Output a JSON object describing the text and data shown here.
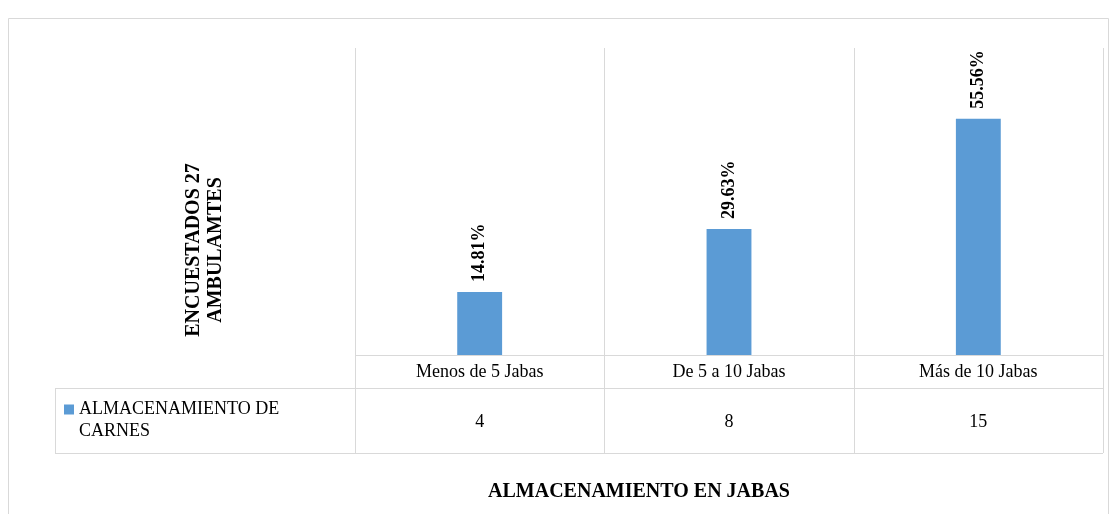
{
  "chart_data": {
    "type": "bar",
    "xlabel": "ALMACENAMIENTO EN JABAS",
    "categories": [
      "Menos de 5 Jabas",
      "De 5 a 10 Jabas",
      "Más de 10 Jabas"
    ],
    "series": [
      {
        "name": "ALMACENAMIENTO DE CARNES",
        "color": "#5b9bd5",
        "values": [
          14.81,
          29.63,
          55.56
        ],
        "value_labels": [
          "14.81%",
          "29.63%",
          "55.56%"
        ]
      }
    ],
    "annotations": [
      "ENCUESTADOS 27 AMBULAMTES",
      "4",
      "8",
      "15"
    ],
    "grid": "x",
    "legend": "bottom left"
  }
}
